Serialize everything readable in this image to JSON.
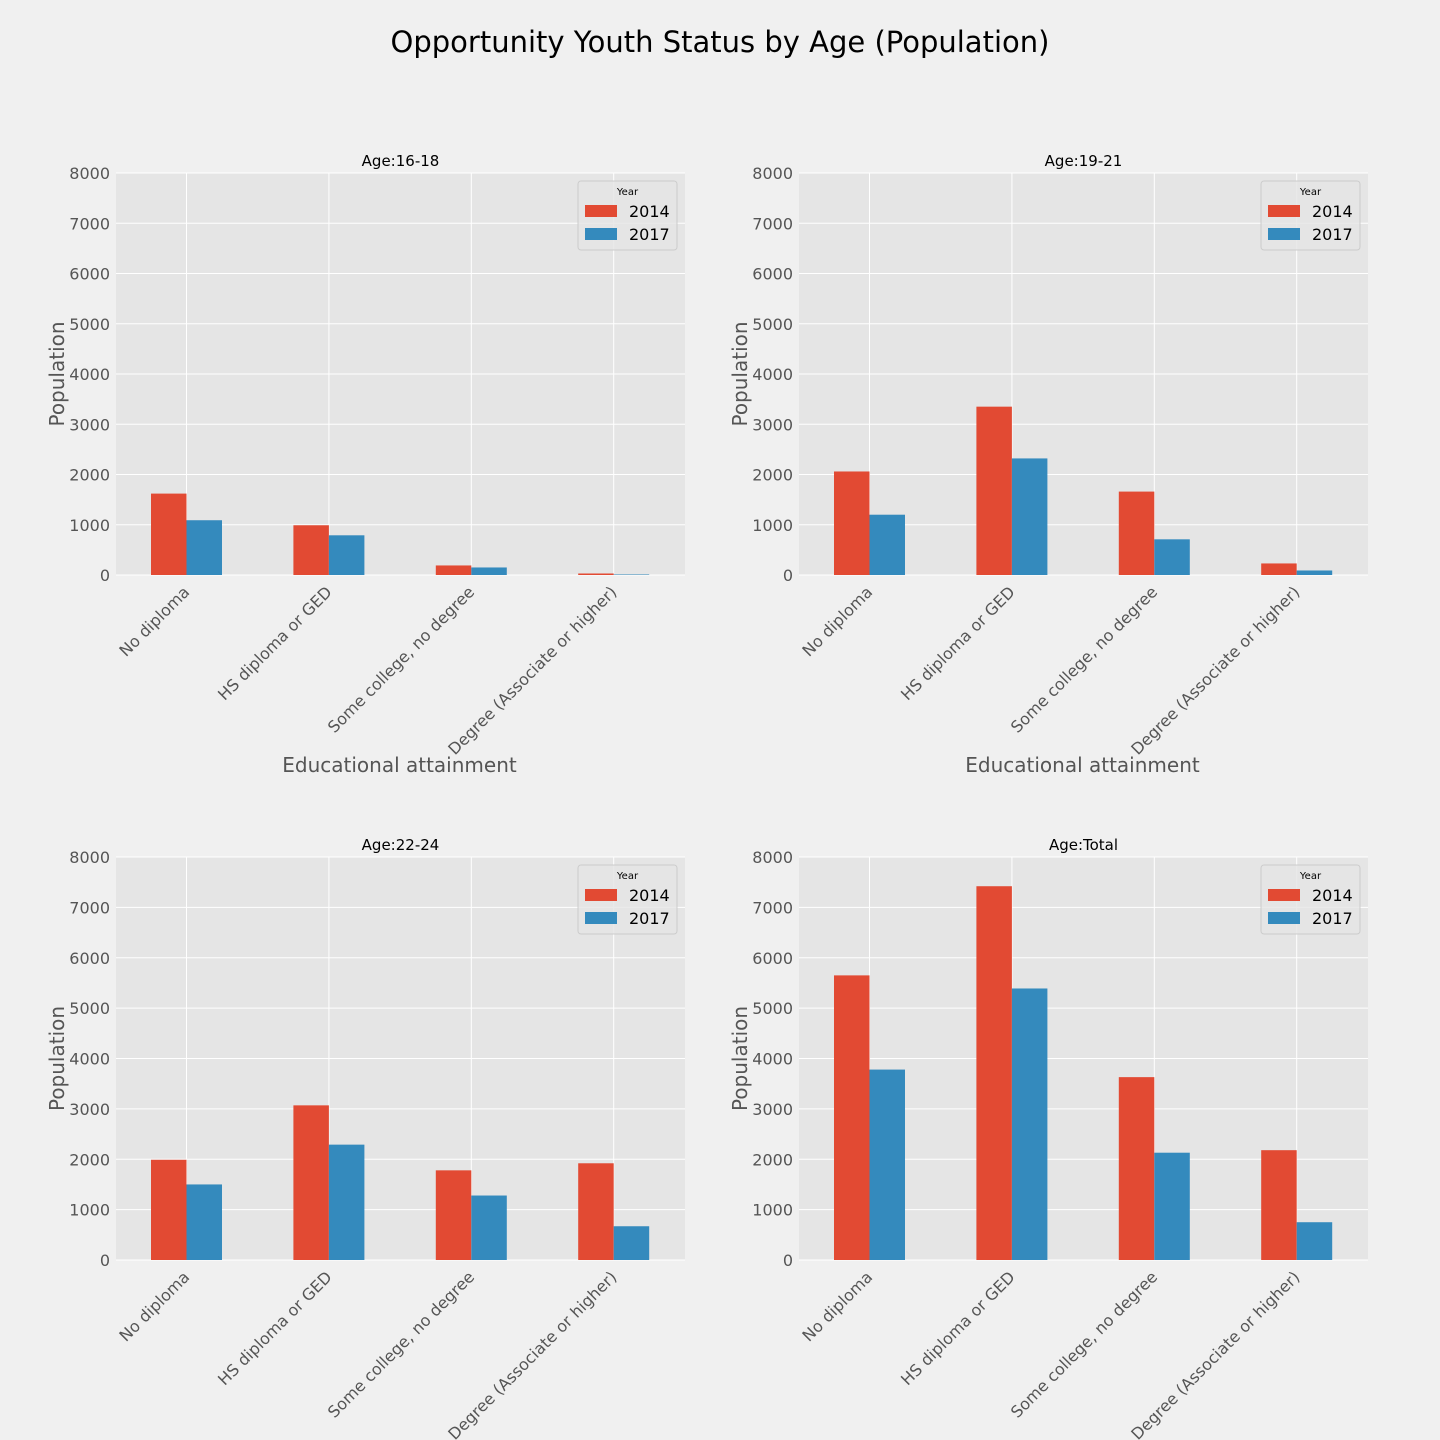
{
  "figure": {
    "title": "Opportunity Youth Status by Age (Population)"
  },
  "chart_data": [
    {
      "type": "bar",
      "title": "Age:16-18",
      "xlabel": "Educational attainment",
      "ylabel": "Population",
      "categories": [
        "No diploma",
        "HS diploma or GED",
        "Some college, no degree",
        "Degree (Associate or higher)"
      ],
      "series": [
        {
          "name": "2014",
          "values": [
            1620,
            990,
            190,
            30
          ]
        },
        {
          "name": "2017",
          "values": [
            1090,
            790,
            150,
            10
          ]
        }
      ],
      "ylim": [
        0,
        8000
      ],
      "yticks": [
        "0",
        "1000",
        "2000",
        "3000",
        "4000",
        "5000",
        "6000",
        "7000",
        "8000"
      ],
      "legend": {
        "title": "Year",
        "position": "top-right"
      },
      "grid": true
    },
    {
      "type": "bar",
      "title": "Age:19-21",
      "xlabel": "Educational attainment",
      "ylabel": "Population",
      "categories": [
        "No diploma",
        "HS diploma or GED",
        "Some college, no degree",
        "Degree (Associate or higher)"
      ],
      "series": [
        {
          "name": "2014",
          "values": [
            2060,
            3350,
            1660,
            230
          ]
        },
        {
          "name": "2017",
          "values": [
            1200,
            2320,
            710,
            90
          ]
        }
      ],
      "ylim": [
        0,
        8000
      ],
      "yticks": [
        "0",
        "1000",
        "2000",
        "3000",
        "4000",
        "5000",
        "6000",
        "7000",
        "8000"
      ],
      "legend": {
        "title": "Year",
        "position": "top-right"
      },
      "grid": true
    },
    {
      "type": "bar",
      "title": "Age:22-24",
      "xlabel": "",
      "ylabel": "Population",
      "categories": [
        "No diploma",
        "HS diploma or GED",
        "Some college, no degree",
        "Degree (Associate or higher)"
      ],
      "series": [
        {
          "name": "2014",
          "values": [
            1990,
            3070,
            1780,
            1920
          ]
        },
        {
          "name": "2017",
          "values": [
            1500,
            2290,
            1280,
            670
          ]
        }
      ],
      "ylim": [
        0,
        8000
      ],
      "yticks": [
        "0",
        "1000",
        "2000",
        "3000",
        "4000",
        "5000",
        "6000",
        "7000",
        "8000"
      ],
      "legend": {
        "title": "Year",
        "position": "top-right"
      },
      "grid": true
    },
    {
      "type": "bar",
      "title": "Age:Total",
      "xlabel": "",
      "ylabel": "Population",
      "categories": [
        "No diploma",
        "HS diploma or GED",
        "Some college, no degree",
        "Degree (Associate or higher)"
      ],
      "series": [
        {
          "name": "2014",
          "values": [
            5650,
            7420,
            3630,
            2180
          ]
        },
        {
          "name": "2017",
          "values": [
            3780,
            5390,
            2130,
            750
          ]
        }
      ],
      "ylim": [
        0,
        8000
      ],
      "yticks": [
        "0",
        "1000",
        "2000",
        "3000",
        "4000",
        "5000",
        "6000",
        "7000",
        "8000"
      ],
      "legend": {
        "title": "Year",
        "position": "top-right"
      },
      "grid": true
    }
  ],
  "colors": {
    "series": [
      "#e24a33",
      "#348abd"
    ],
    "plot_background": "#e5e5e5",
    "figure_background": "#f0f0f0",
    "grid": "#ffffff",
    "tick_text": "#555555"
  }
}
